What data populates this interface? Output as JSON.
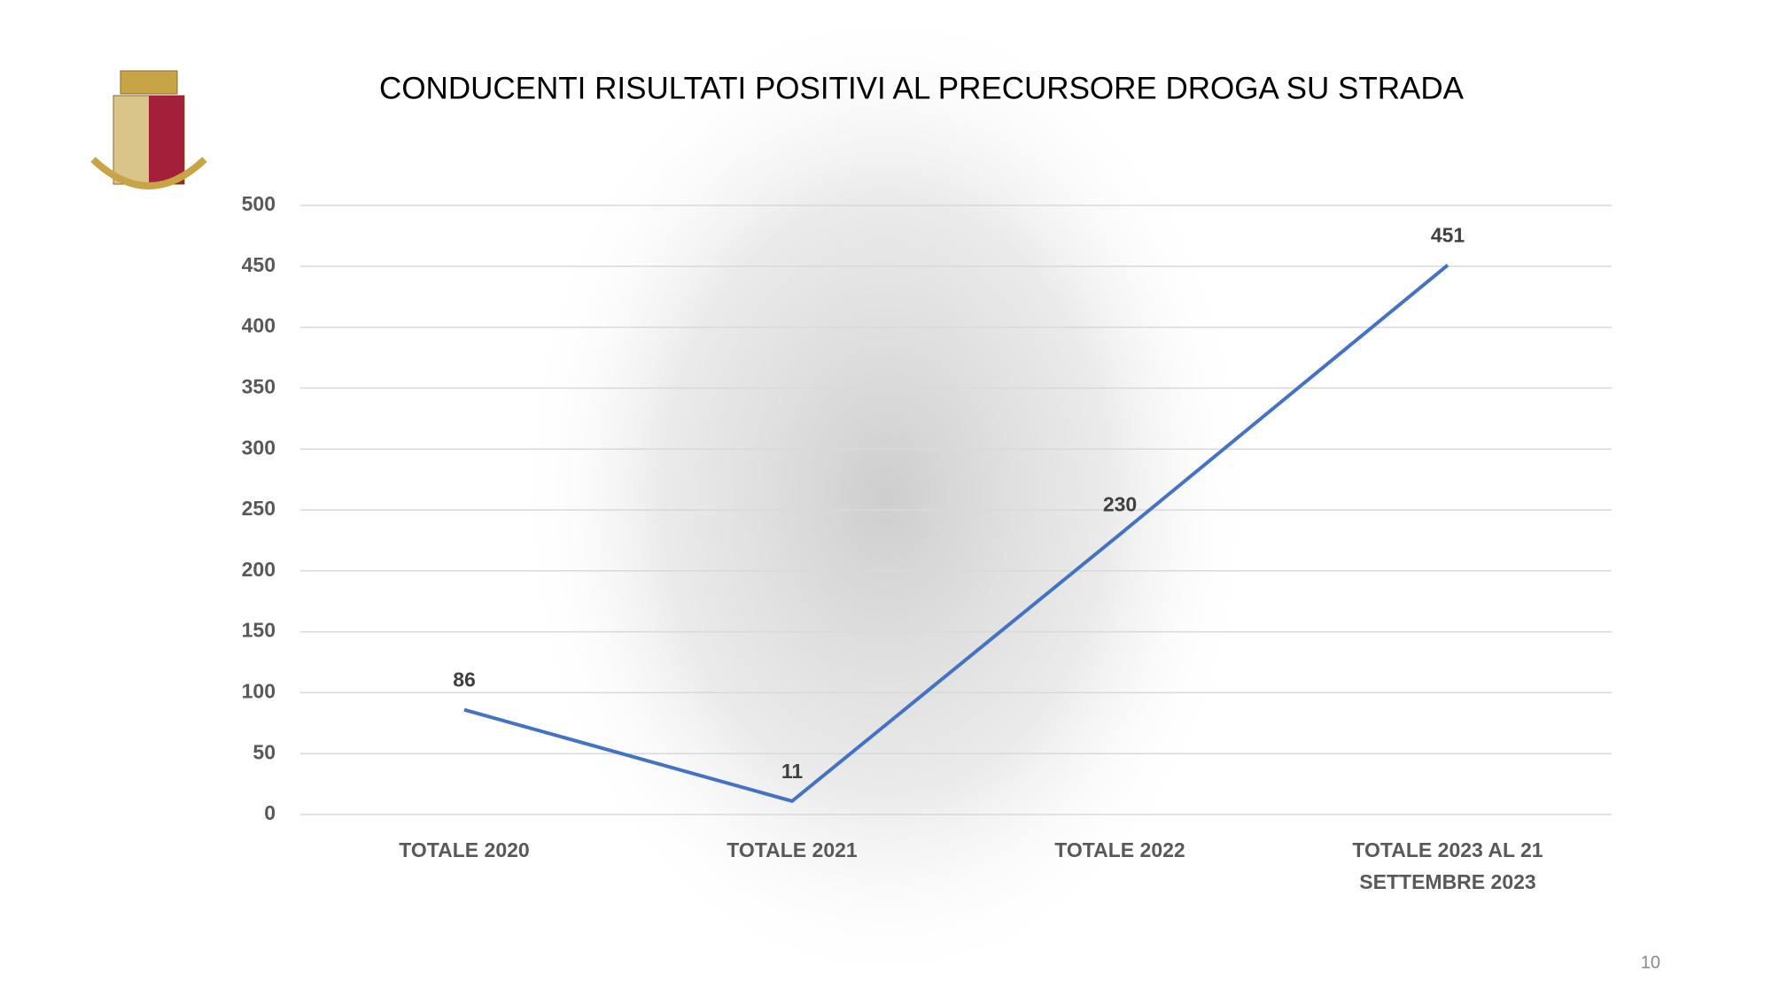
{
  "chart_data": {
    "type": "line",
    "title": "CONDUCENTI RISULTATI POSITIVI AL PRECURSORE DROGA SU STRADA",
    "categories": [
      "TOTALE 2020",
      "TOTALE 2021",
      "TOTALE 2022",
      "TOTALE 2023 AL 21 SETTEMBRE 2023"
    ],
    "values": [
      86,
      11,
      230,
      451
    ],
    "color": "#4472c4",
    "ylim": [
      0,
      500
    ],
    "yticks": [
      0,
      50,
      100,
      150,
      200,
      250,
      300,
      350,
      400,
      450,
      500
    ],
    "grid": true
  },
  "page_number": "10"
}
